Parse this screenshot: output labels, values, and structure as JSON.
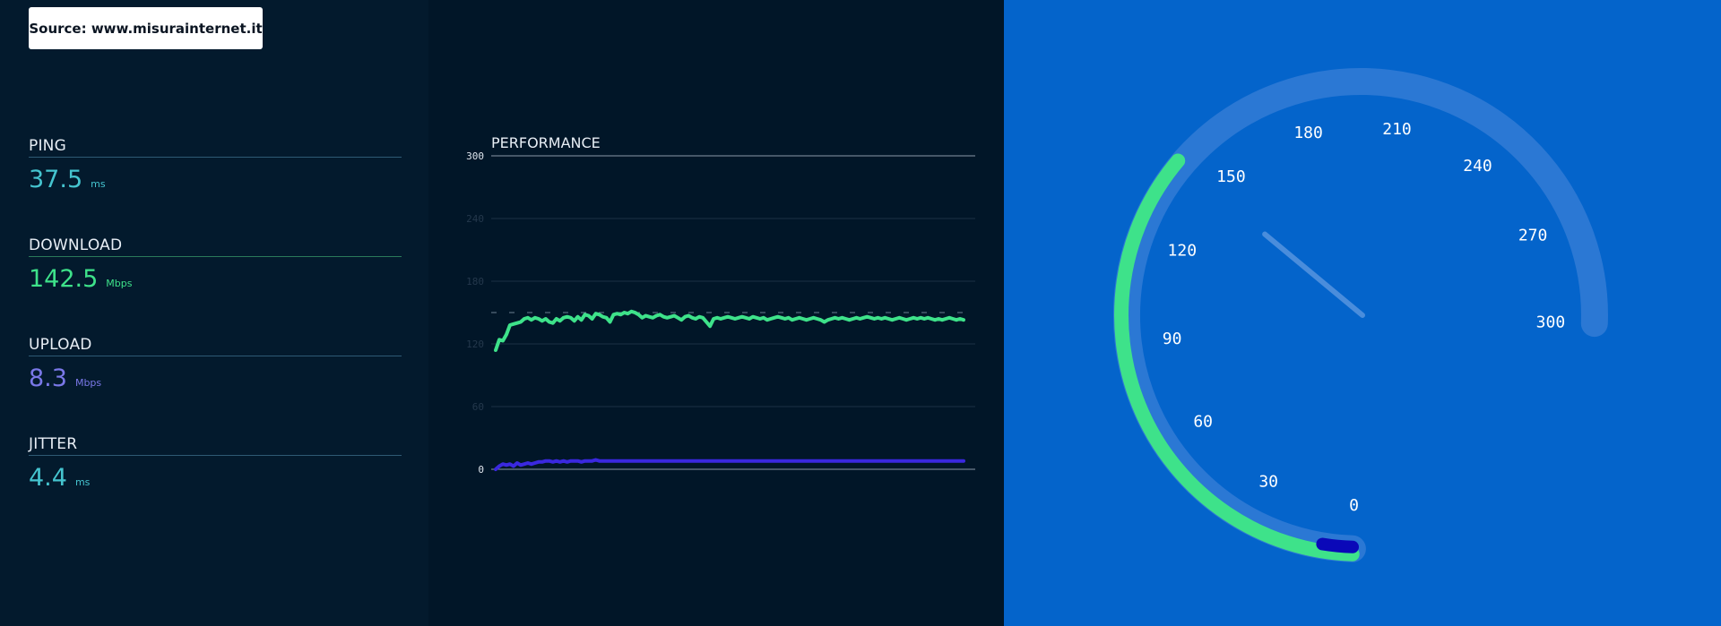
{
  "source": {
    "label": "Source: www.misurainternet.it"
  },
  "metrics": {
    "ping": {
      "label": "PING",
      "value": "37.5",
      "unit": "ms",
      "color": "#45c4cf"
    },
    "download": {
      "label": "DOWNLOAD",
      "value": "142.5",
      "unit": "Mbps",
      "color": "#3ee28a"
    },
    "upload": {
      "label": "UPLOAD",
      "value": "8.3",
      "unit": "Mbps",
      "color": "#7a78e8"
    },
    "jitter": {
      "label": "JITTER",
      "value": "4.4",
      "unit": "ms",
      "color": "#45c4cf"
    }
  },
  "chart": {
    "title": "PERFORMANCE",
    "y_ticks": [
      "300",
      "240",
      "180",
      "120",
      "60",
      "0"
    ]
  },
  "chart_data": {
    "type": "line",
    "title": "PERFORMANCE",
    "ylim": [
      0,
      300
    ],
    "y_ticks": [
      0,
      60,
      120,
      180,
      240,
      300
    ],
    "grid": true,
    "reference_line": 150,
    "series": [
      {
        "color": "#3ee28a",
        "values": [
          114,
          124,
          123,
          129,
          138,
          139,
          140,
          141,
          144,
          145,
          143,
          145,
          144,
          142,
          144,
          141,
          140,
          144,
          142,
          145,
          146,
          145,
          142,
          146,
          143,
          148,
          147,
          144,
          149,
          148,
          146,
          145,
          141,
          148,
          149,
          148,
          150,
          149,
          151,
          150,
          148,
          145,
          147,
          146,
          145,
          147,
          148,
          146,
          145,
          146,
          147,
          145,
          143,
          146,
          147,
          145,
          144,
          146,
          145,
          141,
          137,
          144,
          145,
          144,
          145,
          146,
          145,
          144,
          145,
          146,
          145,
          144,
          146,
          145,
          144,
          145,
          143,
          144,
          145,
          146,
          145,
          144,
          145,
          143,
          144,
          145,
          144,
          143,
          144,
          145,
          144,
          143,
          141,
          143,
          144,
          145,
          144,
          145,
          144,
          143,
          144,
          145,
          144,
          145,
          146,
          145,
          144,
          145,
          144,
          145,
          144,
          143,
          144,
          145,
          144,
          143,
          144,
          145,
          144,
          145,
          144,
          145,
          144,
          143,
          144,
          143,
          144,
          145,
          144,
          143,
          144,
          143
        ]
      },
      {
        "color": "#3a28df",
        "values": [
          0,
          3,
          5,
          4,
          5,
          3,
          6,
          4,
          5,
          6,
          5,
          6,
          7,
          7,
          8,
          8,
          7,
          8,
          7,
          8,
          7,
          8,
          8,
          8,
          7,
          8,
          8,
          8,
          9,
          8,
          8,
          8,
          8,
          8,
          8,
          8,
          8,
          8,
          8,
          8,
          8,
          8,
          8,
          8,
          8,
          8,
          8,
          8,
          8,
          8,
          8,
          8,
          8,
          8,
          8,
          8,
          8,
          8,
          8,
          8,
          8,
          8,
          8,
          8,
          8,
          8,
          8,
          8,
          8,
          8,
          8,
          8,
          8,
          8,
          8,
          8,
          8,
          8,
          8,
          8,
          8,
          8,
          8,
          8,
          8,
          8,
          8,
          8,
          8,
          8,
          8,
          8,
          8,
          8,
          8,
          8,
          8,
          8,
          8,
          8,
          8,
          8,
          8,
          8,
          8,
          8,
          8,
          8,
          8,
          8,
          8,
          8,
          8,
          8,
          8,
          8,
          8,
          8,
          8,
          8,
          8,
          8,
          8,
          8,
          8,
          8,
          8,
          8,
          8,
          8,
          8,
          8
        ]
      }
    ]
  },
  "gauge": {
    "labels": [
      "0",
      "30",
      "60",
      "90",
      "120",
      "150",
      "180",
      "210",
      "240",
      "270",
      "300"
    ],
    "max": 300,
    "download_value": 142.5,
    "upload_value": 8.3,
    "download_color": "#3ee28a",
    "upload_color": "#0a08b8",
    "track_color": "#2b78d4",
    "needle_color": "#4a8ddc"
  }
}
